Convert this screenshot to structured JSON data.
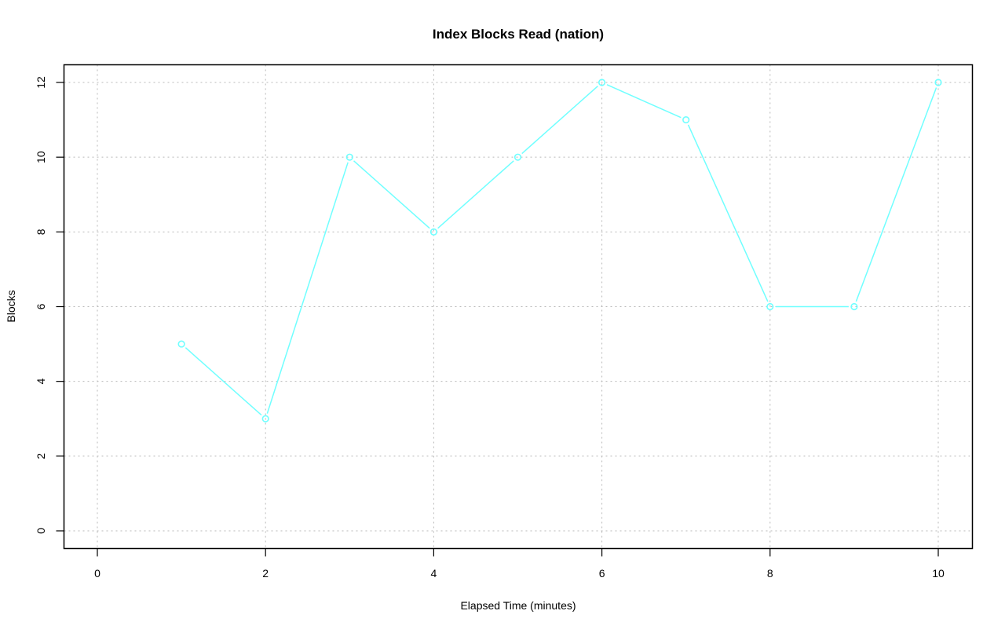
{
  "chart_data": {
    "type": "line",
    "title": "Index Blocks Read (nation)",
    "xlabel": "Elapsed Time (minutes)",
    "ylabel": "Blocks",
    "xlim": [
      0,
      10
    ],
    "ylim": [
      0,
      12
    ],
    "x_ticks": [
      0,
      2,
      4,
      6,
      8,
      10
    ],
    "y_ticks": [
      0,
      2,
      4,
      6,
      8,
      10,
      12
    ],
    "x_tick_labels": [
      "0",
      "2",
      "4",
      "6",
      "8",
      "10"
    ],
    "y_tick_labels": [
      "0",
      "2",
      "4",
      "6",
      "8",
      "10",
      "12"
    ],
    "grid": true,
    "grid_style": "dotted",
    "series": [
      {
        "x": [
          1,
          2,
          3,
          4,
          5,
          6,
          7,
          8,
          9,
          10
        ],
        "y": [
          5,
          3,
          10,
          8,
          10,
          12,
          11,
          6,
          6,
          12
        ],
        "color": "#70ffff",
        "marker": "open-circle"
      }
    ]
  }
}
